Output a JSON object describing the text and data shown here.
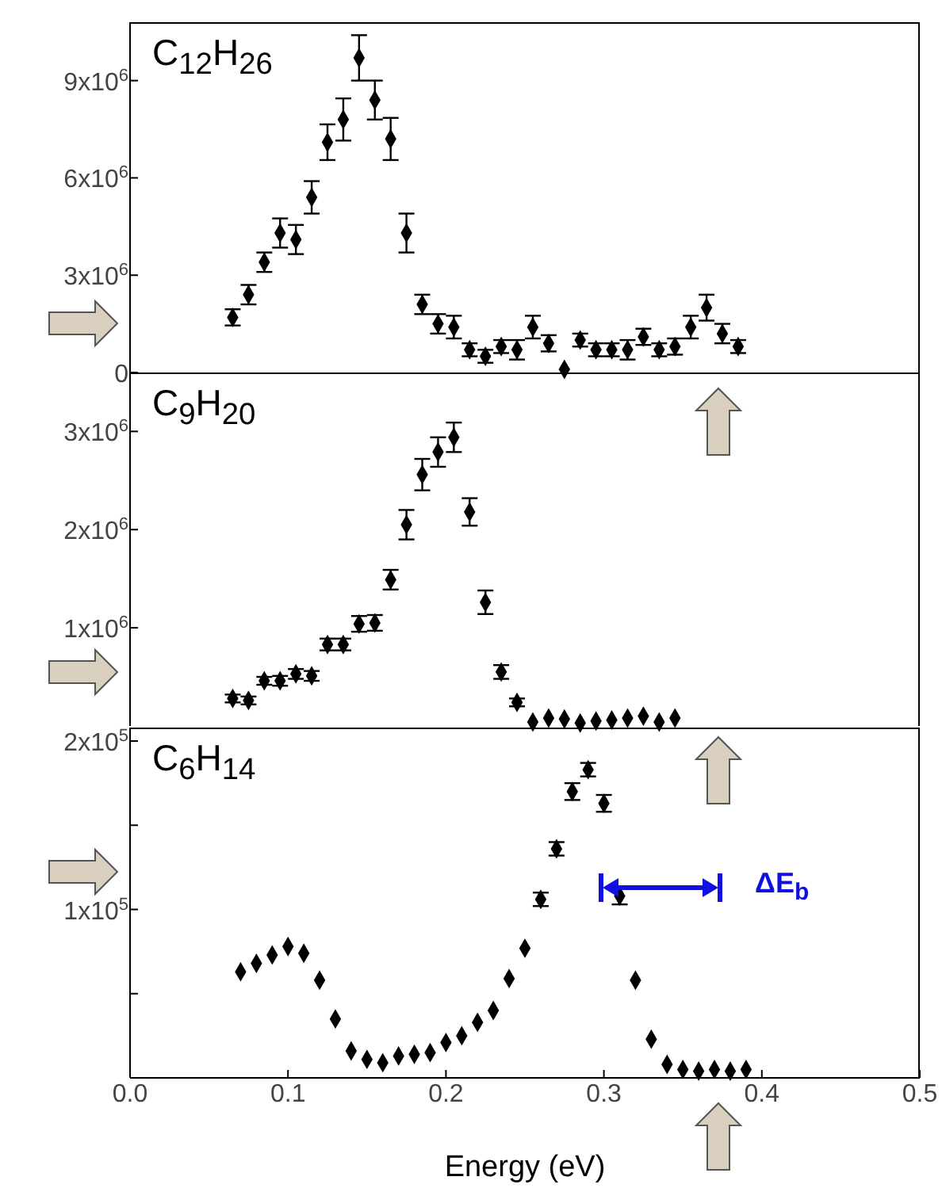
{
  "chart_data": [
    {
      "type": "scatter",
      "annotations": [
        "C$_{12}$H$_{26}$"
      ],
      "marker": "diamond",
      "xlim": [
        0,
        0.5
      ],
      "xticks": [
        0,
        0.1,
        0.2,
        0.3,
        0.4,
        0.5
      ],
      "ylim": [
        0,
        10800000
      ],
      "yticks": [
        0,
        {
          "value": 3000000,
          "label": "3x10$^{6}$"
        },
        {
          "value": 6000000,
          "label": "6x10$^{6}$"
        },
        {
          "value": 9000000,
          "label": "9x10$^{6}$"
        }
      ],
      "tick_labels": "y",
      "grid": false,
      "x": [
        0.065,
        0.075,
        0.085,
        0.095,
        0.105,
        0.115,
        0.125,
        0.135,
        0.145,
        0.155,
        0.165,
        0.175,
        0.185,
        0.195,
        0.205,
        0.215,
        0.225,
        0.235,
        0.245,
        0.255,
        0.265,
        0.275,
        0.285,
        0.295,
        0.305,
        0.315,
        0.325,
        0.335,
        0.345,
        0.355,
        0.365,
        0.375,
        0.385
      ],
      "series": [
        {
          "color": "#000000",
          "values": [
            1700000,
            2400000,
            3400000,
            4300000,
            4100000,
            5400000,
            7100000,
            7800000,
            9700000,
            8400000,
            7200000,
            4300000,
            2100000,
            1500000,
            1400000,
            700000,
            500000,
            800000,
            700000,
            1400000,
            900000,
            100000,
            1000000,
            700000,
            700000,
            700000,
            1100000,
            700000,
            800000,
            1400000,
            2000000,
            1200000,
            800000
          ],
          "errors": [
            250000,
            300000,
            300000,
            450000,
            450000,
            500000,
            550000,
            650000,
            700000,
            600000,
            650000,
            600000,
            300000,
            300000,
            350000,
            200000,
            200000,
            200000,
            300000,
            350000,
            250000,
            null,
            200000,
            200000,
            200000,
            300000,
            250000,
            200000,
            250000,
            350000,
            400000,
            300000,
            200000
          ]
        }
      ]
    },
    {
      "type": "scatter",
      "annotations": [
        "C$_{9}$H$_{20}$"
      ],
      "marker": "diamond",
      "xlim": [
        0,
        0.5
      ],
      "xticks": [
        0,
        0.1,
        0.2,
        0.3,
        0.4,
        0.5
      ],
      "ylim": [
        0,
        3600000
      ],
      "yticks": [
        {
          "value": 1000000,
          "label": "1x10$^{6}$"
        },
        {
          "value": 2000000,
          "label": "2x10$^{6}$"
        },
        {
          "value": 3000000,
          "label": "3x10$^{6}$"
        }
      ],
      "tick_labels": "y",
      "grid": false,
      "x": [
        0.065,
        0.075,
        0.085,
        0.095,
        0.105,
        0.115,
        0.125,
        0.135,
        0.145,
        0.155,
        0.165,
        0.175,
        0.185,
        0.195,
        0.205,
        0.215,
        0.225,
        0.235,
        0.245,
        0.255,
        0.265,
        0.275,
        0.285,
        0.295,
        0.305,
        0.315,
        0.325,
        0.335,
        0.345
      ],
      "series": [
        {
          "color": "#000000",
          "values": [
            280000,
            260000,
            460000,
            460000,
            530000,
            510000,
            830000,
            830000,
            1040000,
            1050000,
            1490000,
            2050000,
            2560000,
            2790000,
            2940000,
            2180000,
            1260000,
            550000,
            240000,
            40000,
            80000,
            70000,
            30000,
            50000,
            60000,
            80000,
            100000,
            40000,
            80000
          ],
          "errors": [
            40000,
            40000,
            40000,
            50000,
            50000,
            50000,
            60000,
            60000,
            80000,
            80000,
            100000,
            150000,
            160000,
            150000,
            150000,
            140000,
            120000,
            70000,
            40000,
            null,
            null,
            null,
            null,
            null,
            null,
            null,
            null,
            null,
            null
          ]
        }
      ]
    },
    {
      "type": "scatter",
      "annotations": [
        "C$_{6}$H$_{14}$",
        "ΔE$_{b}$"
      ],
      "marker": "diamond",
      "xlabel": "Energy (eV)",
      "xlim": [
        0,
        0.5
      ],
      "xticks": [
        {
          "value": 0,
          "label": "0.0"
        },
        0.1,
        0.2,
        0.3,
        0.4,
        0.5
      ],
      "ylim": [
        0,
        208000
      ],
      "yticks": [
        {
          "value": 50000,
          "label": null
        },
        {
          "value": 100000,
          "label": "1x10$^{5}$"
        },
        {
          "value": 150000,
          "label": null
        },
        {
          "value": 200000,
          "label": "2x10$^{5}$"
        }
      ],
      "grid": false,
      "x": [
        0.07,
        0.08,
        0.09,
        0.1,
        0.11,
        0.12,
        0.13,
        0.14,
        0.15,
        0.16,
        0.17,
        0.18,
        0.19,
        0.2,
        0.21,
        0.22,
        0.23,
        0.24,
        0.25,
        0.26,
        0.27,
        0.28,
        0.29,
        0.3,
        0.31,
        0.32,
        0.33,
        0.34,
        0.35,
        0.36,
        0.37,
        0.38,
        0.39
      ],
      "series": [
        {
          "color": "#000000",
          "values": [
            63000,
            68000,
            73000,
            78000,
            74000,
            58000,
            35000,
            16000,
            11000,
            9000,
            13000,
            14000,
            15000,
            21000,
            25000,
            33000,
            40000,
            59000,
            77000,
            106000,
            136000,
            170000,
            183000,
            163000,
            108000,
            58000,
            23000,
            8000,
            5000,
            4000,
            5000,
            4000,
            5000
          ],
          "errors": [
            null,
            null,
            null,
            null,
            null,
            null,
            null,
            null,
            null,
            null,
            null,
            null,
            null,
            null,
            null,
            null,
            null,
            null,
            null,
            4000,
            4000,
            5000,
            4000,
            5000,
            5000,
            null,
            null,
            null,
            null,
            null,
            null,
            null,
            null
          ]
        }
      ]
    }
  ]
}
